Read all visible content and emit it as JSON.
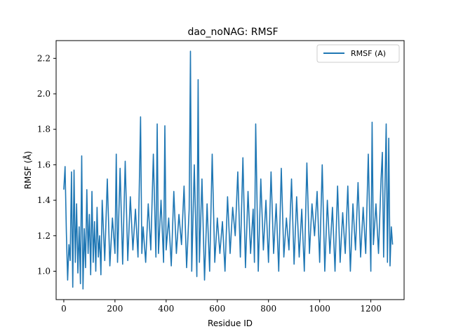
{
  "chart_data": {
    "type": "line",
    "title": "dao_noNAG: RMSF",
    "xlabel": "Residue ID",
    "ylabel": "RMSF (Å)",
    "xlim": [
      -30,
      1330
    ],
    "ylim": [
      0.84,
      2.3
    ],
    "xticks": [
      0,
      200,
      400,
      600,
      800,
      1000,
      1200
    ],
    "xtick_labels": [
      "0",
      "200",
      "400",
      "600",
      "800",
      "1000",
      "1200"
    ],
    "yticks": [
      1.0,
      1.2,
      1.4,
      1.6,
      1.8,
      2.0,
      2.2
    ],
    "ytick_labels": [
      "1.0",
      "1.2",
      "1.4",
      "1.6",
      "1.8",
      "2.0",
      "2.2"
    ],
    "grid": false,
    "legend_position": "top-right",
    "series": [
      {
        "name": "RMSF (A)",
        "color": "#1f77b4",
        "x": [
          0,
          5,
          10,
          15,
          20,
          25,
          30,
          35,
          40,
          45,
          50,
          55,
          60,
          65,
          70,
          75,
          80,
          85,
          90,
          95,
          100,
          105,
          110,
          115,
          120,
          125,
          130,
          135,
          140,
          145,
          150,
          160,
          170,
          180,
          190,
          200,
          205,
          210,
          220,
          230,
          240,
          250,
          260,
          270,
          280,
          290,
          300,
          305,
          310,
          320,
          330,
          340,
          350,
          360,
          365,
          370,
          380,
          390,
          395,
          400,
          410,
          420,
          430,
          440,
          450,
          460,
          470,
          480,
          490,
          495,
          500,
          510,
          520,
          525,
          530,
          540,
          550,
          560,
          570,
          580,
          590,
          600,
          610,
          620,
          630,
          640,
          650,
          660,
          670,
          680,
          690,
          700,
          710,
          720,
          730,
          740,
          745,
          750,
          760,
          770,
          780,
          790,
          800,
          810,
          820,
          830,
          840,
          850,
          860,
          870,
          880,
          890,
          900,
          910,
          920,
          930,
          940,
          950,
          960,
          970,
          980,
          990,
          1000,
          1010,
          1020,
          1030,
          1040,
          1050,
          1060,
          1070,
          1080,
          1090,
          1100,
          1110,
          1120,
          1130,
          1140,
          1150,
          1160,
          1170,
          1180,
          1190,
          1200,
          1205,
          1210,
          1220,
          1230,
          1240,
          1245,
          1250,
          1260,
          1265,
          1270,
          1275,
          1280,
          1285
        ],
        "y": [
          1.46,
          1.59,
          1.22,
          0.95,
          1.15,
          1.06,
          1.56,
          0.91,
          1.57,
          1.05,
          1.38,
          0.99,
          1.25,
          0.93,
          1.65,
          0.9,
          1.24,
          1.02,
          1.46,
          1.1,
          1.32,
          0.98,
          1.45,
          1.05,
          1.28,
          1.0,
          1.36,
          1.08,
          1.2,
          0.98,
          1.4,
          1.06,
          1.52,
          1.03,
          1.3,
          1.1,
          1.66,
          1.05,
          1.58,
          1.04,
          1.62,
          1.06,
          1.42,
          1.12,
          1.35,
          1.08,
          1.87,
          1.1,
          1.25,
          1.05,
          1.38,
          1.12,
          1.66,
          1.08,
          1.83,
          1.1,
          1.4,
          1.05,
          1.82,
          1.12,
          1.3,
          1.03,
          1.45,
          1.1,
          1.32,
          1.15,
          1.48,
          1.02,
          1.35,
          2.24,
          1.0,
          1.6,
          0.97,
          2.08,
          1.05,
          1.52,
          0.95,
          1.38,
          1.0,
          1.66,
          1.05,
          1.3,
          1.1,
          1.28,
          1.0,
          1.42,
          1.1,
          1.36,
          1.2,
          1.56,
          1.08,
          1.64,
          1.02,
          1.45,
          1.1,
          1.35,
          1.05,
          1.83,
          1.0,
          1.52,
          1.12,
          1.4,
          1.05,
          1.56,
          1.1,
          1.38,
          1.0,
          1.58,
          1.08,
          1.3,
          1.12,
          1.52,
          1.04,
          1.42,
          1.08,
          1.35,
          1.0,
          1.61,
          1.1,
          1.38,
          1.2,
          1.45,
          1.05,
          1.6,
          1.0,
          1.4,
          1.1,
          1.36,
          1.0,
          1.48,
          1.05,
          1.33,
          1.1,
          1.48,
          1.0,
          1.38,
          1.12,
          1.5,
          1.08,
          1.36,
          1.1,
          1.66,
          1.0,
          1.84,
          1.15,
          1.38,
          1.1,
          1.52,
          1.67,
          1.08,
          1.83,
          1.05,
          1.75,
          1.03,
          1.25,
          1.15
        ]
      }
    ]
  }
}
